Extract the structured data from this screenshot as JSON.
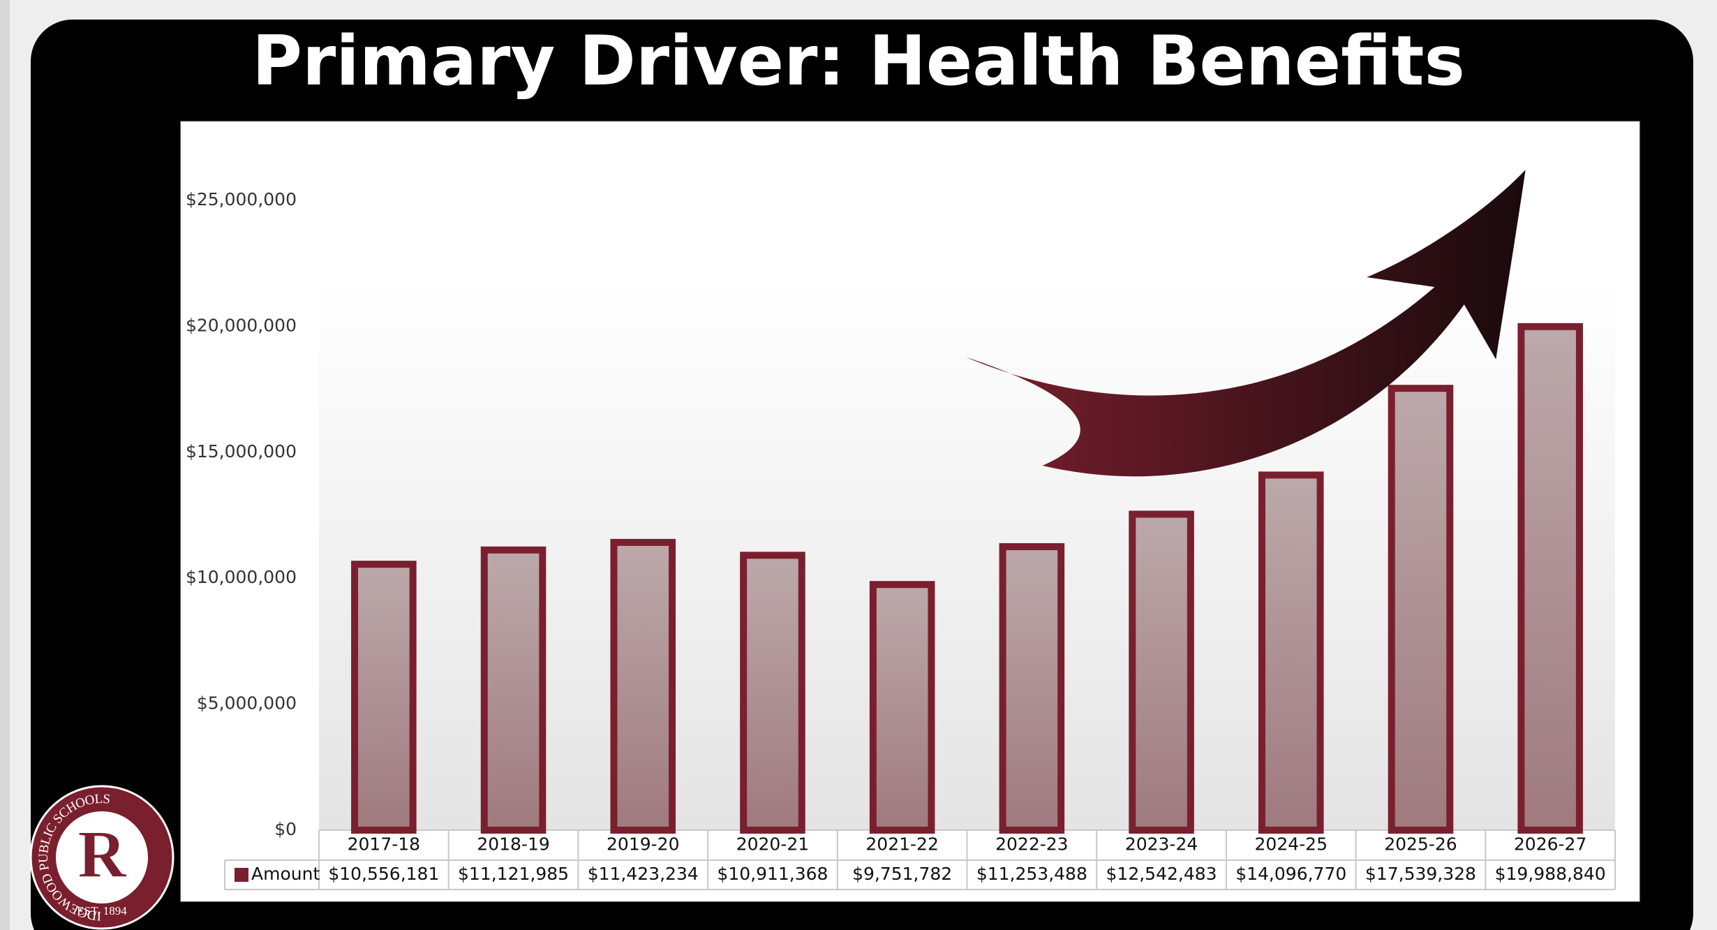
{
  "chart_data": {
    "type": "bar",
    "title": "Primary Driver: Health Benefits",
    "categories": [
      "2017-18",
      "2018-19",
      "2019-20",
      "2020-21",
      "2021-22",
      "2022-23",
      "2023-24",
      "2024-25",
      "2025-26",
      "2026-27"
    ],
    "series": [
      {
        "name": "Amount",
        "color": "#7a1f2e",
        "values": [
          10556181,
          11121985,
          11423234,
          10911368,
          9751782,
          11253488,
          12542483,
          14096770,
          17539328,
          19988840
        ],
        "value_labels": [
          "$10,556,181",
          "$11,121,985",
          "$11,423,234",
          "$10,911,368",
          "$9,751,782",
          "$11,253,488",
          "$12,542,483",
          "$14,096,770",
          "$17,539,328",
          "$19,988,840"
        ]
      }
    ],
    "ylim": [
      0,
      25000000
    ],
    "yticks": [
      {
        "value": 0,
        "label": "$0"
      },
      {
        "value": 5000000,
        "label": "$5,000,000"
      },
      {
        "value": 10000000,
        "label": "$10,000,000"
      },
      {
        "value": 15000000,
        "label": "$15,000,000"
      },
      {
        "value": 20000000,
        "label": "$20,000,000"
      },
      {
        "value": 25000000,
        "label": "$25,000,000"
      }
    ],
    "grid": false
  },
  "logo": {
    "ring_text": "RIDGEWOOD PUBLIC SCHOOLS",
    "letter": "R",
    "established": "EST. 1894"
  }
}
